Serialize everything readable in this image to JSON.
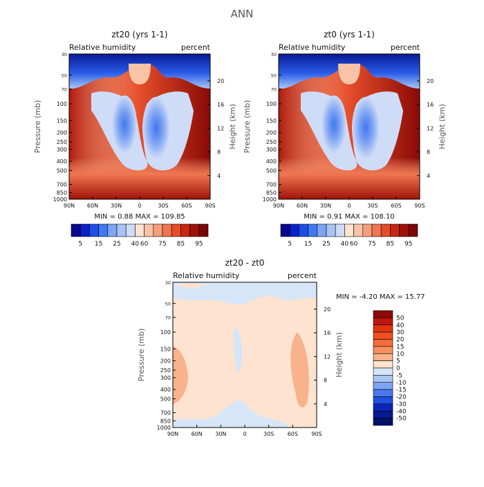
{
  "page_title": "ANN",
  "chart_data": [
    {
      "type": "heatmap",
      "title": "zt20 (yrs 1-1)",
      "left_label": "Relative humidity",
      "right_label": "percent",
      "xlabel": "",
      "ylabel": "Pressure (mb)",
      "ylabel2": "Height (km)",
      "x_ticks": [
        "90N",
        "60N",
        "30N",
        "0",
        "30S",
        "60S",
        "90S"
      ],
      "y_ticks": [
        "30",
        "50",
        "70",
        "100",
        "150",
        "200",
        "250",
        "300",
        "400",
        "500",
        "700",
        "850",
        "1000"
      ],
      "y2_ticks": [
        "20",
        "16",
        "12",
        "8",
        "4"
      ],
      "stats": {
        "min_label": "MIN =",
        "min": "0.88",
        "max_label": "MAX =",
        "max": "109.85"
      },
      "colorbar": {
        "orientation": "horizontal",
        "levels": [
          "5",
          "15",
          "25",
          "40",
          "60",
          "75",
          "85",
          "95"
        ],
        "colors": [
          "#08088c",
          "#0a22c8",
          "#1d4fe6",
          "#3f78f0",
          "#7ea4f3",
          "#a7c4f4",
          "#cfdcf7",
          "#fde4d0",
          "#f8c3a6",
          "#f59e7b",
          "#ef7650",
          "#e54d2a",
          "#c8260f",
          "#a01208",
          "#7a0606"
        ]
      }
    },
    {
      "type": "heatmap",
      "title": "zt0 (yrs 1-1)",
      "left_label": "Relative humidity",
      "right_label": "percent",
      "xlabel": "",
      "ylabel": "Pressure (mb)",
      "ylabel2": "Height (km)",
      "x_ticks": [
        "90N",
        "60N",
        "30N",
        "0",
        "30S",
        "60S",
        "90S"
      ],
      "y_ticks": [
        "30",
        "50",
        "70",
        "100",
        "150",
        "200",
        "250",
        "300",
        "400",
        "500",
        "700",
        "850",
        "1000"
      ],
      "y2_ticks": [
        "20",
        "16",
        "12",
        "8",
        "4"
      ],
      "stats": {
        "min_label": "MIN =",
        "min": "0.91",
        "max_label": "MAX =",
        "max": "108.10"
      },
      "colorbar": {
        "orientation": "horizontal",
        "levels": [
          "5",
          "15",
          "25",
          "40",
          "60",
          "75",
          "85",
          "95"
        ],
        "colors": [
          "#08088c",
          "#0a22c8",
          "#1d4fe6",
          "#3f78f0",
          "#7ea4f3",
          "#a7c4f4",
          "#cfdcf7",
          "#fde4d0",
          "#f8c3a6",
          "#f59e7b",
          "#ef7650",
          "#e54d2a",
          "#c8260f",
          "#a01208",
          "#7a0606"
        ]
      }
    },
    {
      "type": "heatmap",
      "title": "zt20 - zt0",
      "left_label": "Relative humidity",
      "right_label": "percent",
      "xlabel": "",
      "ylabel": "Pressure (mb)",
      "ylabel2": "Height (km)",
      "x_ticks": [
        "90N",
        "60N",
        "30N",
        "0",
        "30S",
        "60S",
        "90S"
      ],
      "y_ticks": [
        "30",
        "50",
        "70",
        "100",
        "150",
        "200",
        "250",
        "300",
        "400",
        "500",
        "700",
        "850",
        "1000"
      ],
      "y2_ticks": [
        "20",
        "16",
        "12",
        "8",
        "4"
      ],
      "stats": {
        "min_label": "MIN =",
        "min": "-4.20",
        "max_label": "MAX =",
        "max": "15.77"
      },
      "colorbar": {
        "orientation": "vertical",
        "levels": [
          "50",
          "40",
          "30",
          "20",
          "15",
          "10",
          "5",
          "0",
          "-5",
          "-10",
          "-15",
          "-20",
          "-30",
          "-40",
          "-50"
        ],
        "colors": [
          "#8c0a0a",
          "#c0170c",
          "#e23312",
          "#f04f22",
          "#f46d3b",
          "#f68f60",
          "#f8b28c",
          "#fde3d0",
          "#d6e6f8",
          "#a9c6f4",
          "#7ea4f3",
          "#4a78f0",
          "#2050e0",
          "#0a26b8",
          "#061a90",
          "#040f6a"
        ]
      }
    }
  ]
}
